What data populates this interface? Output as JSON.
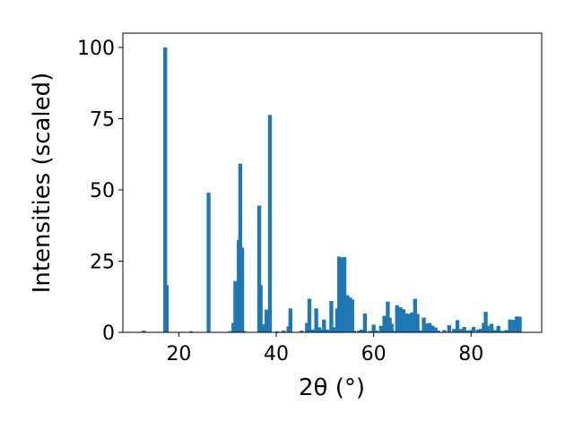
{
  "chart_data": {
    "type": "bar",
    "xlabel": "2θ (°)",
    "ylabel": "Intensities (scaled)",
    "xlim": [
      8.5,
      94.5
    ],
    "ylim": [
      0,
      105
    ],
    "xticks": [
      20,
      40,
      60,
      80
    ],
    "yticks": [
      0,
      25,
      50,
      75,
      100
    ],
    "bar_color": "#1f77b4",
    "bar_width": 0.8,
    "grid": false,
    "legend": "none",
    "series": [
      {
        "x": [
          12.8,
          17.2,
          17.5,
          22.5,
          26.1,
          30.5,
          31.2,
          31.6,
          32.3,
          32.6,
          33.0,
          33.3,
          36.5,
          36.8,
          37.2,
          38.0,
          38.7,
          40.2,
          41.5,
          42.5,
          42.9,
          45.2,
          46.3,
          46.8,
          47.5,
          48.2,
          48.8,
          49.3,
          49.8,
          50.5,
          51.3,
          51.8,
          52.5,
          52.9,
          53.6,
          54.0,
          54.6,
          55.2,
          55.6,
          56.0,
          57.0,
          57.5,
          58.2,
          59.3,
          60.0,
          60.6,
          61.5,
          62.2,
          62.9,
          63.3,
          63.7,
          64.2,
          64.8,
          65.5,
          66.1,
          66.7,
          67.4,
          67.9,
          68.5,
          69.0,
          69.5,
          70.3,
          71.0,
          71.5,
          72.1,
          72.7,
          73.3,
          74.5,
          75.5,
          76.5,
          77.2,
          78.0,
          78.6,
          79.2,
          80.0,
          80.5,
          81.4,
          82.0,
          82.6,
          83.0,
          83.4,
          84.2,
          84.9,
          85.6,
          86.4,
          87.2,
          88.0,
          88.8,
          89.4,
          90.0
        ],
        "values": [
          0.6,
          100,
          16.6,
          0.4,
          49,
          0.4,
          3.3,
          18,
          32.4,
          59.2,
          29.7,
          0.5,
          44.5,
          16.6,
          2.8,
          8,
          76.3,
          0.4,
          0.6,
          2.1,
          8.4,
          0.6,
          3.3,
          11.8,
          1.0,
          8.4,
          1.8,
          1.0,
          4.5,
          1.0,
          11.0,
          1.8,
          8.4,
          26.6,
          26.3,
          26.4,
          13.0,
          12.2,
          11.5,
          0.6,
          0.6,
          1.0,
          6.6,
          0.5,
          2.7,
          0.6,
          2.3,
          5.8,
          10.8,
          5.1,
          3.0,
          0.5,
          9.5,
          8.8,
          8.1,
          6.6,
          6.5,
          7.0,
          11.8,
          6.5,
          0.7,
          5.2,
          3.1,
          3.3,
          2.3,
          1.7,
          0.6,
          0.8,
          2.5,
          1.2,
          4.3,
          1.2,
          1.9,
          0.6,
          0.8,
          1.9,
          1.0,
          1.2,
          3.3,
          7.2,
          2.3,
          3.0,
          0.8,
          2.3,
          0.5,
          0.8,
          4.5,
          4.4,
          5.6,
          5.5
        ]
      }
    ]
  }
}
